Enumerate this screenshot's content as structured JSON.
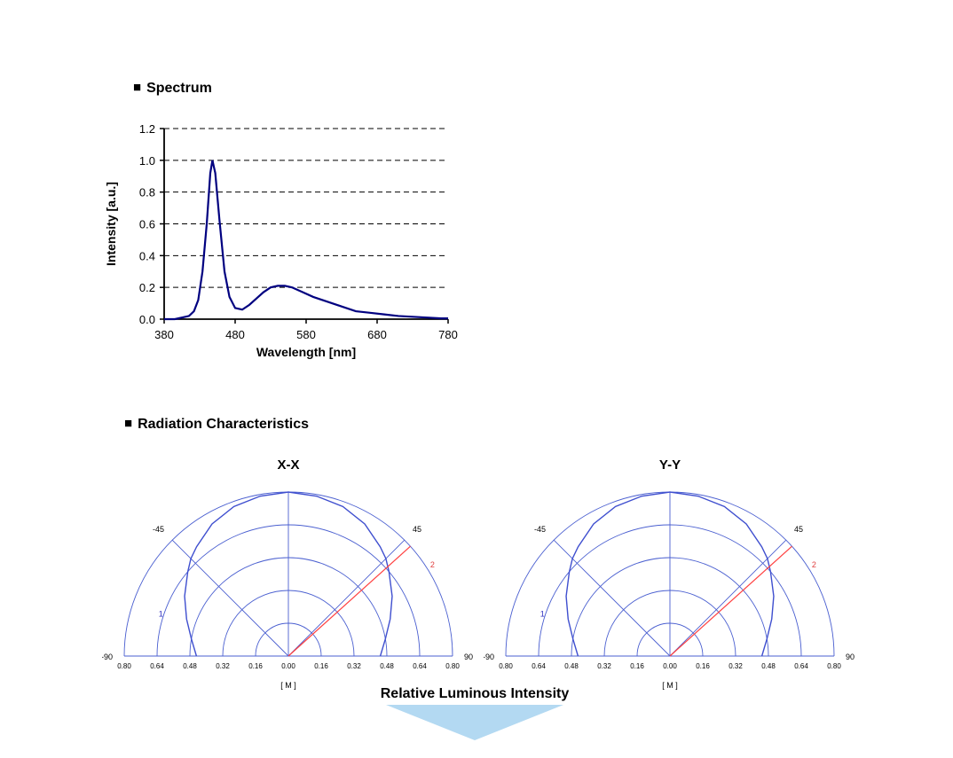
{
  "sections": {
    "spectrum_heading": "Spectrum",
    "radiation_heading": "Radiation Characteristics"
  },
  "spectrum": {
    "type": "line",
    "title": "Spectrum",
    "xlabel": "Wavelength [nm]",
    "ylabel": "Intensity [a.u.]",
    "axis_font_size": 14,
    "tick_font_size": 13,
    "xlim": [
      380,
      780
    ],
    "ylim": [
      0.0,
      1.2
    ],
    "xticks": [
      380,
      480,
      580,
      680,
      780
    ],
    "yticks": [
      0.0,
      0.2,
      0.4,
      0.6,
      0.8,
      1.0,
      1.2
    ],
    "grid_dash": [
      6,
      4
    ],
    "grid_color": "#000000",
    "axis_color": "#000000",
    "line_color": "#000080",
    "line_width": 2.2,
    "background_color": "#ffffff",
    "data": [
      [
        380,
        0.0
      ],
      [
        395,
        0.0
      ],
      [
        405,
        0.01
      ],
      [
        415,
        0.02
      ],
      [
        422,
        0.05
      ],
      [
        428,
        0.12
      ],
      [
        434,
        0.3
      ],
      [
        440,
        0.6
      ],
      [
        445,
        0.92
      ],
      [
        448,
        1.0
      ],
      [
        452,
        0.92
      ],
      [
        458,
        0.62
      ],
      [
        465,
        0.3
      ],
      [
        472,
        0.14
      ],
      [
        480,
        0.07
      ],
      [
        490,
        0.06
      ],
      [
        500,
        0.09
      ],
      [
        510,
        0.13
      ],
      [
        520,
        0.17
      ],
      [
        530,
        0.2
      ],
      [
        540,
        0.21
      ],
      [
        550,
        0.21
      ],
      [
        560,
        0.2
      ],
      [
        575,
        0.17
      ],
      [
        590,
        0.14
      ],
      [
        610,
        0.11
      ],
      [
        630,
        0.08
      ],
      [
        650,
        0.05
      ],
      [
        670,
        0.04
      ],
      [
        690,
        0.03
      ],
      [
        710,
        0.02
      ],
      [
        730,
        0.015
      ],
      [
        750,
        0.01
      ],
      [
        770,
        0.005
      ],
      [
        780,
        0.005
      ]
    ]
  },
  "polar_common": {
    "type": "polar-half",
    "axis_color": "#4a5fd0",
    "axis_width": 0.9,
    "lobe_color": "#3f4fcf",
    "lobe_width": 1.4,
    "ray_color": "#ff4040",
    "ray_width": 1.2,
    "angle_labels": [
      -90,
      -45,
      0,
      45,
      90
    ],
    "angle_font_size": 9,
    "radial_ticks": [
      0.0,
      0.16,
      0.32,
      0.48,
      0.64,
      0.8
    ],
    "radial_font_size": 8,
    "scale_label": "[ M ]",
    "one_label_color": "#3030c0",
    "two_label_color": "#e04040",
    "bottom_label": "Relative Luminous Intensity"
  },
  "polar_left": {
    "title": "X-X",
    "lobe": [
      [
        -90,
        0.56
      ],
      [
        -80,
        0.6
      ],
      [
        -70,
        0.66
      ],
      [
        -60,
        0.73
      ],
      [
        -50,
        0.8
      ],
      [
        -45,
        0.84
      ],
      [
        -40,
        0.87
      ],
      [
        -30,
        0.93
      ],
      [
        -20,
        0.97
      ],
      [
        -10,
        0.99
      ],
      [
        0,
        1.0
      ],
      [
        10,
        0.99
      ],
      [
        20,
        0.97
      ],
      [
        30,
        0.93
      ],
      [
        40,
        0.87
      ],
      [
        45,
        0.84
      ],
      [
        50,
        0.8
      ],
      [
        60,
        0.73
      ],
      [
        70,
        0.66
      ],
      [
        80,
        0.6
      ],
      [
        90,
        0.56
      ]
    ],
    "ray_angle": 48
  },
  "polar_right": {
    "title": "Y-Y",
    "lobe": [
      [
        -90,
        0.56
      ],
      [
        -80,
        0.6
      ],
      [
        -70,
        0.66
      ],
      [
        -60,
        0.73
      ],
      [
        -50,
        0.8
      ],
      [
        -45,
        0.84
      ],
      [
        -40,
        0.87
      ],
      [
        -30,
        0.93
      ],
      [
        -20,
        0.97
      ],
      [
        -10,
        0.99
      ],
      [
        0,
        1.0
      ],
      [
        10,
        0.99
      ],
      [
        20,
        0.97
      ],
      [
        30,
        0.93
      ],
      [
        40,
        0.87
      ],
      [
        45,
        0.84
      ],
      [
        50,
        0.8
      ],
      [
        60,
        0.73
      ],
      [
        70,
        0.66
      ],
      [
        80,
        0.6
      ],
      [
        90,
        0.56
      ]
    ],
    "ray_angle": 48
  },
  "decor": {
    "triangle_color": "#b3d9f2"
  }
}
